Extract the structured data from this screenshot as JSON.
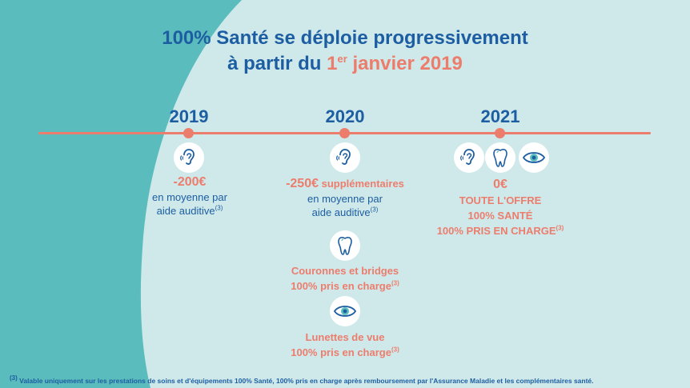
{
  "title": {
    "line1": "100% Santé se déploie progressivement",
    "line2_prefix": "à partir du ",
    "line2_one": "1",
    "line2_sup": "er",
    "line2_rest": " janvier 2019"
  },
  "colors": {
    "blue": "#1d5ea2",
    "coral": "#ec7d6d",
    "teal": "#5bbcbd",
    "light": "#cfe9ea"
  },
  "years": [
    "2019",
    "2020",
    "2021"
  ],
  "col2019": {
    "icon": "ear-icon",
    "amount": "-200€",
    "line1": "en moyenne par",
    "line2": "aide auditive",
    "ref": "(3)"
  },
  "col2020": {
    "icon": "ear-icon",
    "amount": "-250€",
    "amount_suffix": " supplémentaires",
    "line1": "en moyenne par",
    "line2": "aide auditive",
    "ref": "(3)",
    "dental": {
      "icon": "tooth-icon",
      "line1": "Couronnes et bridges",
      "line2": "100% pris en charge",
      "ref": "(3)"
    },
    "optical": {
      "icon": "eye-icon",
      "line1": "Lunettes de vue",
      "line2": "100% pris en charge",
      "ref": "(3)"
    }
  },
  "col2021": {
    "icons": [
      "ear-icon",
      "tooth-icon",
      "eye-icon"
    ],
    "amount": "0€",
    "line1": "TOUTE L'OFFRE",
    "line2": "100% SANTÉ",
    "line3": "100% PRIS EN CHARGE",
    "ref": "(3)"
  },
  "footnote": {
    "ref": "(3)",
    "text": " Valable uniquement sur les prestations de soins  et d'équipements 100% Santé, 100% pris en charge après remboursement par l'Assurance  Maladie  et les complémentaires santé."
  }
}
